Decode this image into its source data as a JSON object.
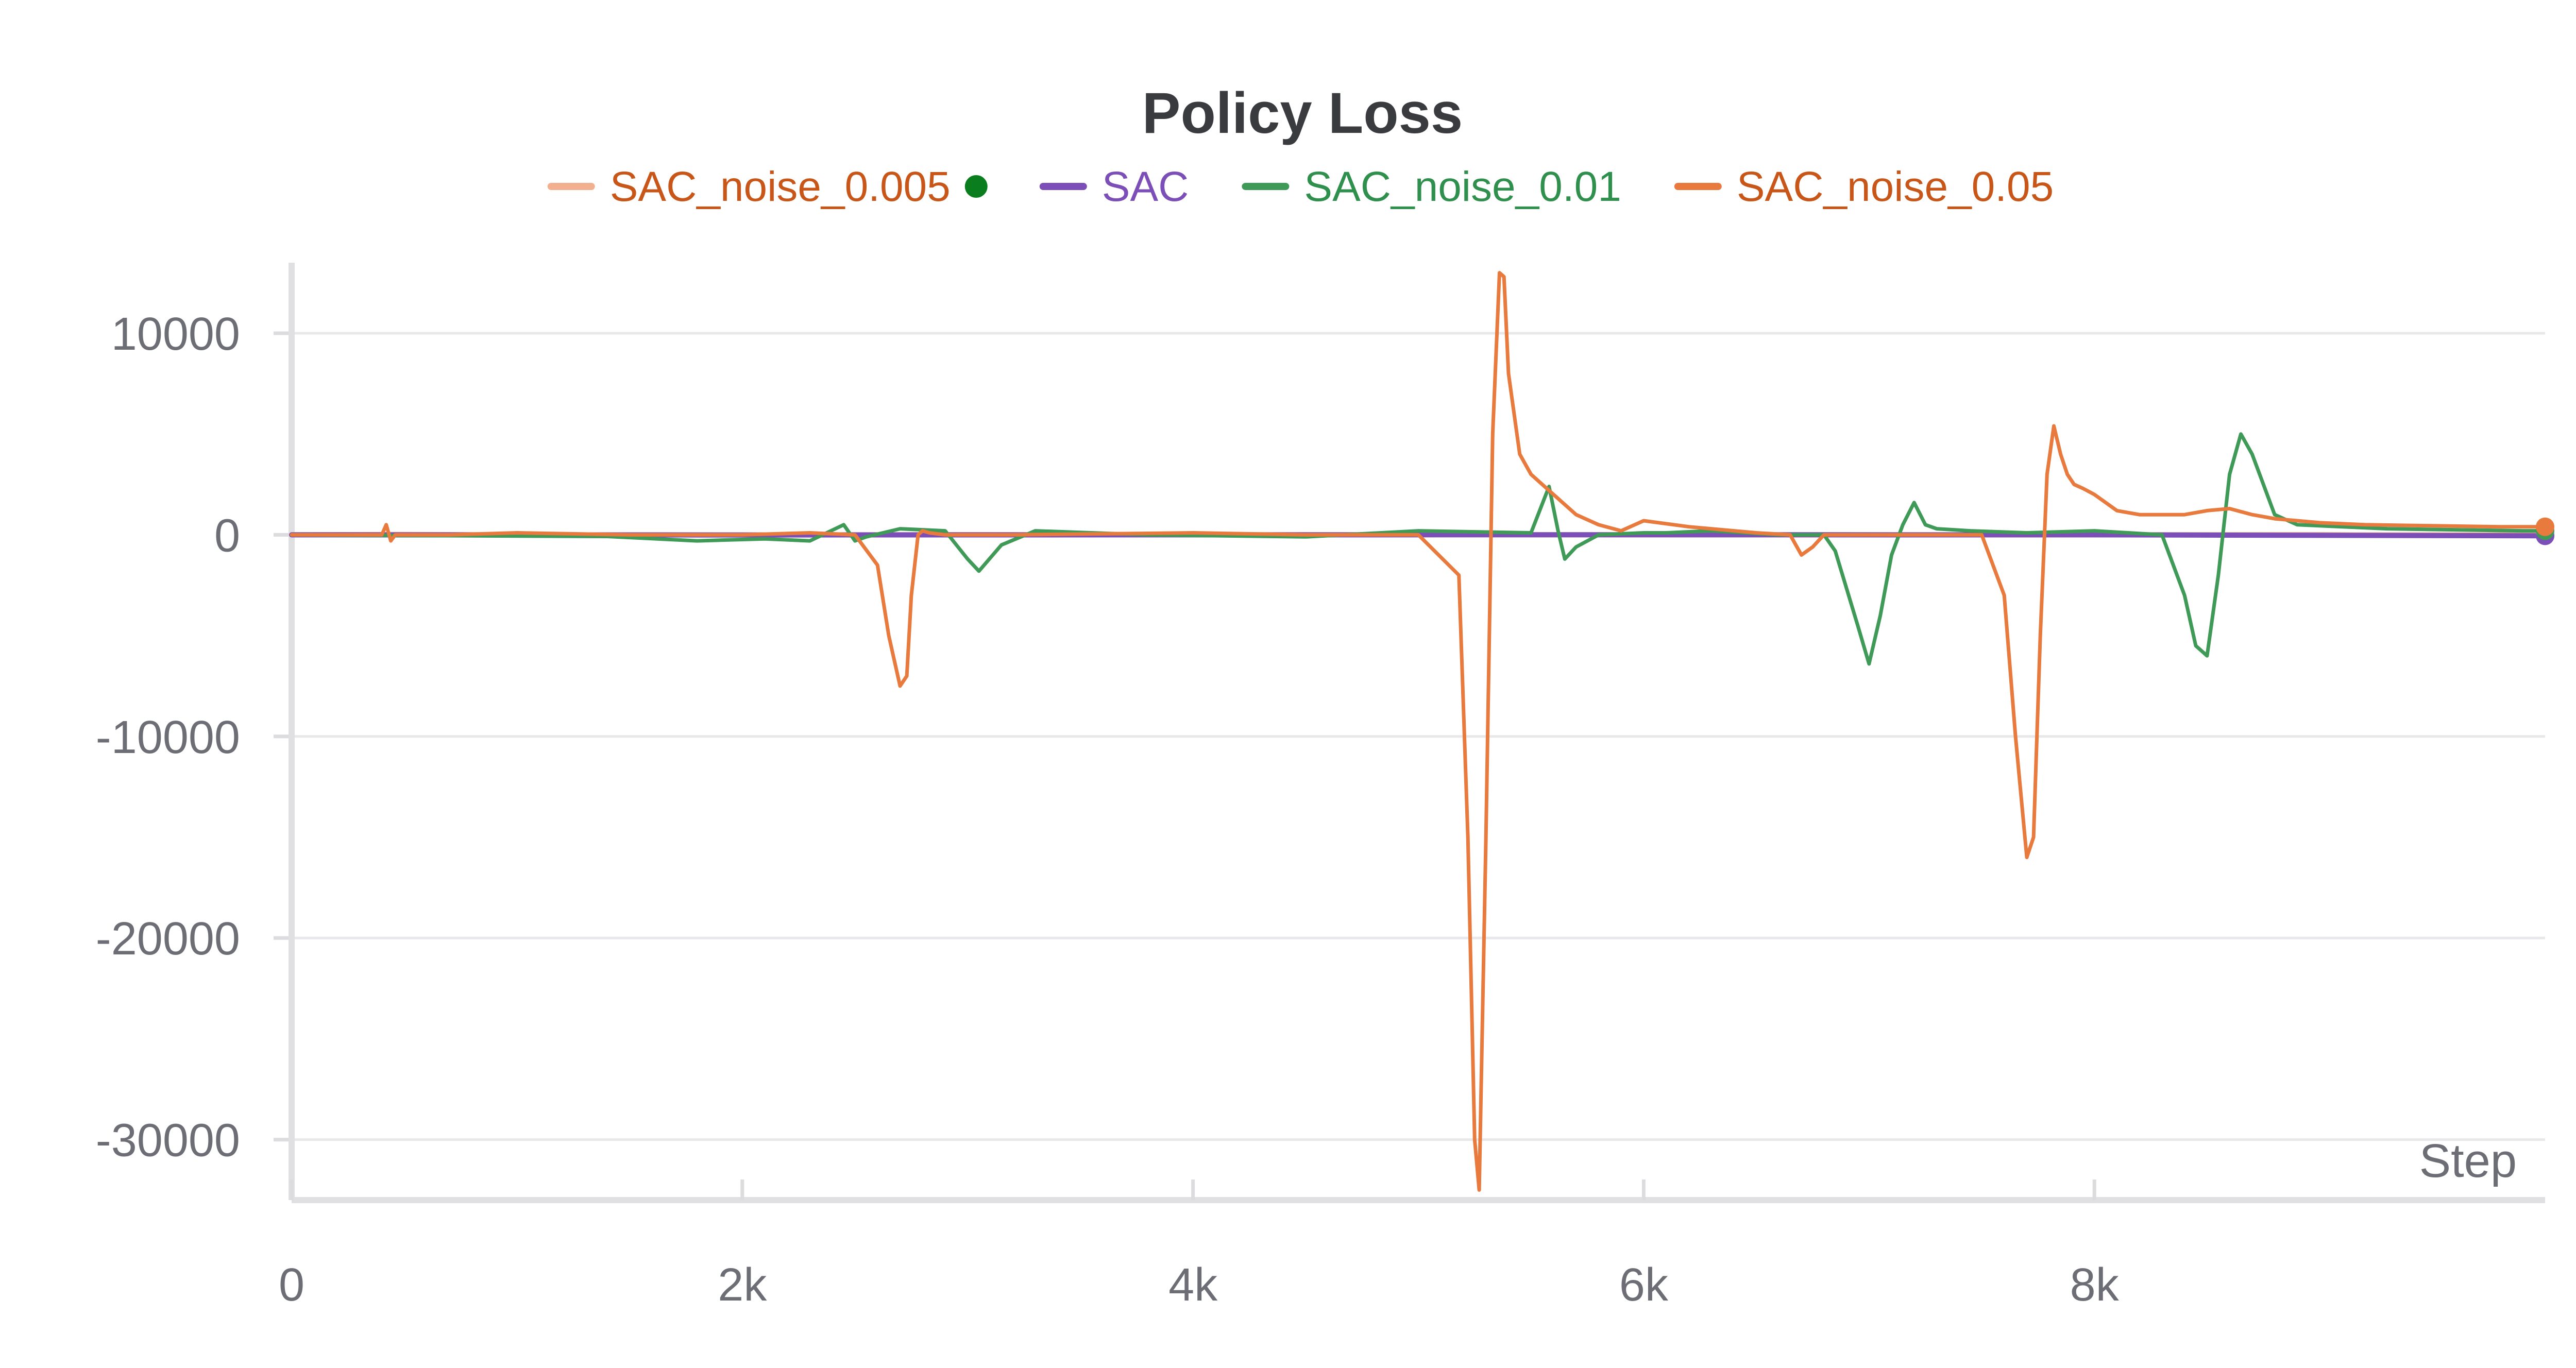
{
  "chart_data": {
    "type": "line",
    "title": "Policy Loss",
    "xlabel": "Step",
    "ylabel": "",
    "xlim": [
      0,
      10000
    ],
    "ylim": [
      -33000,
      13500
    ],
    "xticks": [
      0,
      2000,
      4000,
      6000,
      8000
    ],
    "xtick_labels": [
      "0",
      "2k",
      "4k",
      "6k",
      "8k"
    ],
    "yticks": [
      10000,
      0,
      -10000,
      -20000,
      -30000
    ],
    "ytick_labels": [
      "10000",
      "0",
      "-10000",
      "-20000",
      "-30000"
    ],
    "grid": true,
    "legend_position": "top-center",
    "legend_labels": [
      "SAC_noise_0.005",
      "SAC",
      "SAC_noise_0.01",
      "SAC_noise_0.05"
    ],
    "series": [
      {
        "name": "SAC_noise_0.005",
        "color": "#f2b08f",
        "legend_text_color": "#c85618",
        "x": [
          0,
          500,
          1000,
          2000,
          3000,
          4000,
          5000,
          6000,
          7000,
          8000,
          9000,
          9200,
          10000
        ],
        "y": [
          0,
          20,
          0,
          -10,
          10,
          0,
          5,
          0,
          -5,
          0,
          10,
          0,
          0
        ]
      },
      {
        "name": "SAC",
        "color": "#7b4fb7",
        "legend_text_color": "#7b4fb7",
        "x": [
          0,
          2000,
          4000,
          6000,
          8000,
          10000
        ],
        "y": [
          0,
          -5,
          0,
          5,
          0,
          -50
        ]
      },
      {
        "name": "SAC_noise_0.01",
        "color": "#3f9a58",
        "legend_text_color": "#2f8f4d",
        "x": [
          0,
          300,
          800,
          1400,
          1800,
          2100,
          2300,
          2450,
          2500,
          2550,
          2700,
          2900,
          2950,
          3000,
          3050,
          3150,
          3300,
          3800,
          4500,
          5000,
          5500,
          5580,
          5620,
          5650,
          5700,
          5800,
          6000,
          6100,
          6300,
          6600,
          6800,
          6850,
          6950,
          7000,
          7050,
          7100,
          7150,
          7200,
          7250,
          7300,
          7450,
          7700,
          8000,
          8300,
          8400,
          8450,
          8500,
          8550,
          8600,
          8650,
          8700,
          8800,
          8900,
          9100,
          9300,
          9600,
          9900,
          10000
        ],
        "y": [
          0,
          -20,
          -50,
          -80,
          -300,
          -200,
          -300,
          500,
          -300,
          -100,
          300,
          200,
          -500,
          -1200,
          -1800,
          -500,
          200,
          0,
          -100,
          200,
          100,
          2400,
          200,
          -1200,
          -600,
          0,
          100,
          100,
          200,
          0,
          0,
          -800,
          -4500,
          -6400,
          -4000,
          -1000,
          500,
          1600,
          500,
          300,
          200,
          100,
          200,
          0,
          -3000,
          -5500,
          -6000,
          -2000,
          3000,
          5000,
          4000,
          1000,
          500,
          400,
          300,
          250,
          200,
          200
        ]
      },
      {
        "name": "SAC_noise_0.05",
        "color": "#e77a3c",
        "legend_text_color": "#c85618",
        "x": [
          0,
          400,
          420,
          440,
          460,
          700,
          1000,
          1500,
          2000,
          2300,
          2500,
          2600,
          2650,
          2700,
          2730,
          2750,
          2780,
          2800,
          2830,
          2900,
          3200,
          4000,
          4500,
          5000,
          5180,
          5220,
          5250,
          5270,
          5300,
          5330,
          5360,
          5380,
          5400,
          5450,
          5500,
          5600,
          5700,
          5800,
          5900,
          6000,
          6200,
          6500,
          6650,
          6700,
          6750,
          6800,
          7000,
          7200,
          7500,
          7600,
          7650,
          7700,
          7730,
          7760,
          7790,
          7820,
          7850,
          7880,
          7910,
          7950,
          8000,
          8100,
          8200,
          8400,
          8500,
          8600,
          8700,
          8800,
          9000,
          9200,
          9500,
          9800,
          10000
        ],
        "y": [
          0,
          0,
          500,
          -300,
          0,
          0,
          100,
          0,
          0,
          100,
          0,
          -1500,
          -5000,
          -7500,
          -7000,
          -3000,
          0,
          200,
          100,
          0,
          0,
          100,
          0,
          0,
          -2000,
          -15000,
          -30000,
          -32500,
          -15000,
          5000,
          13000,
          12800,
          8000,
          4000,
          3000,
          2000,
          1000,
          500,
          200,
          700,
          400,
          100,
          0,
          -1000,
          -600,
          0,
          0,
          0,
          0,
          -3000,
          -10000,
          -16000,
          -15000,
          -5000,
          3000,
          5400,
          4000,
          3000,
          2500,
          2300,
          2000,
          1200,
          1000,
          1000,
          1200,
          1300,
          1000,
          800,
          600,
          500,
          450,
          400,
          400
        ]
      }
    ]
  }
}
